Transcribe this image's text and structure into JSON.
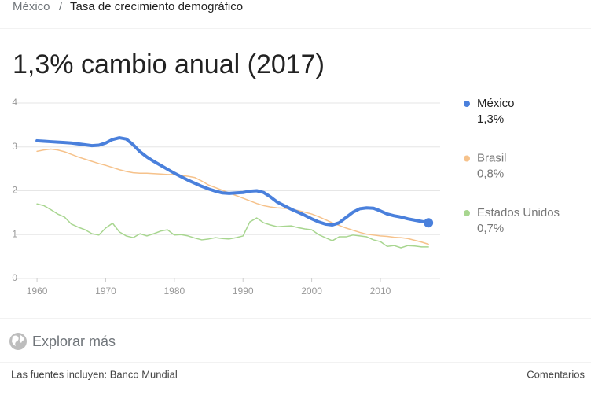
{
  "breadcrumb": {
    "parent": "México",
    "separator": "/",
    "current": "Tasa de crecimiento demográfico"
  },
  "chart_data": {
    "type": "line",
    "title": "1,3% cambio anual (2017)",
    "legend": "right",
    "grid": true,
    "x": [
      1960,
      1961,
      1962,
      1963,
      1964,
      1965,
      1966,
      1967,
      1968,
      1969,
      1970,
      1971,
      1972,
      1973,
      1974,
      1975,
      1976,
      1977,
      1978,
      1979,
      1980,
      1981,
      1982,
      1983,
      1984,
      1985,
      1986,
      1987,
      1988,
      1989,
      1990,
      1991,
      1992,
      1993,
      1994,
      1995,
      1996,
      1997,
      1998,
      1999,
      2000,
      2001,
      2002,
      2003,
      2004,
      2005,
      2006,
      2007,
      2008,
      2009,
      2010,
      2011,
      2012,
      2013,
      2014,
      2015,
      2016,
      2017
    ],
    "xlim": [
      1956.9,
      2018.7
    ],
    "xticks": [
      1960,
      1970,
      1980,
      1990,
      2000,
      2010
    ],
    "ylim": [
      0,
      4
    ],
    "yticks": [
      0,
      1,
      2,
      3,
      4
    ],
    "series": [
      {
        "name": "México",
        "color": "#4a80dc",
        "value_label": "1,3%",
        "values": [
          3.14,
          3.13,
          3.12,
          3.11,
          3.1,
          3.09,
          3.07,
          3.05,
          3.03,
          3.04,
          3.09,
          3.17,
          3.21,
          3.18,
          3.05,
          2.89,
          2.77,
          2.67,
          2.58,
          2.49,
          2.4,
          2.32,
          2.24,
          2.17,
          2.1,
          2.04,
          1.99,
          1.95,
          1.94,
          1.95,
          1.96,
          1.99,
          2.0,
          1.96,
          1.86,
          1.74,
          1.66,
          1.58,
          1.51,
          1.44,
          1.36,
          1.29,
          1.24,
          1.22,
          1.27,
          1.39,
          1.51,
          1.59,
          1.61,
          1.6,
          1.54,
          1.47,
          1.43,
          1.4,
          1.36,
          1.33,
          1.3,
          1.27
        ]
      },
      {
        "name": "Brasil",
        "color": "#f6c28b",
        "value_label": "0,8%",
        "values": [
          2.9,
          2.93,
          2.95,
          2.93,
          2.89,
          2.83,
          2.77,
          2.72,
          2.67,
          2.62,
          2.58,
          2.53,
          2.48,
          2.44,
          2.41,
          2.4,
          2.4,
          2.39,
          2.38,
          2.37,
          2.37,
          2.35,
          2.33,
          2.3,
          2.22,
          2.13,
          2.07,
          2.01,
          1.95,
          1.89,
          1.83,
          1.77,
          1.71,
          1.66,
          1.63,
          1.61,
          1.6,
          1.58,
          1.55,
          1.51,
          1.47,
          1.41,
          1.34,
          1.27,
          1.21,
          1.15,
          1.1,
          1.05,
          1.01,
          0.99,
          0.97,
          0.96,
          0.94,
          0.93,
          0.91,
          0.87,
          0.83,
          0.78
        ]
      },
      {
        "name": "Estados Unidos",
        "color": "#a8d690",
        "value_label": "0,7%",
        "values": [
          1.7,
          1.66,
          1.57,
          1.47,
          1.4,
          1.24,
          1.17,
          1.11,
          1.02,
          0.99,
          1.15,
          1.26,
          1.06,
          0.97,
          0.93,
          1.02,
          0.97,
          1.02,
          1.08,
          1.11,
          0.99,
          1.0,
          0.97,
          0.92,
          0.88,
          0.9,
          0.93,
          0.91,
          0.9,
          0.93,
          0.97,
          1.29,
          1.38,
          1.27,
          1.22,
          1.18,
          1.19,
          1.2,
          1.16,
          1.13,
          1.11,
          1.0,
          0.93,
          0.86,
          0.95,
          0.95,
          0.99,
          0.97,
          0.95,
          0.88,
          0.84,
          0.73,
          0.75,
          0.7,
          0.75,
          0.74,
          0.72,
          0.72
        ]
      }
    ]
  },
  "explore": "Explorar más",
  "footer": {
    "sources": "Las fuentes incluyen: Banco Mundial",
    "feedback": "Comentarios"
  }
}
